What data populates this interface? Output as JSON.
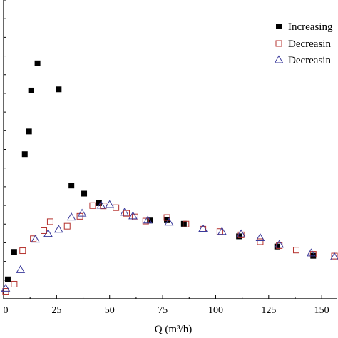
{
  "chart_data": {
    "type": "scatter",
    "title": "",
    "xlabel": "Q (m³/h)",
    "ylabel": "",
    "xlim": [
      0,
      157
    ],
    "ylim": [
      0,
      100
    ],
    "x_ticks": [
      0,
      25,
      50,
      75,
      100,
      125,
      150
    ],
    "x_tick_labels": [
      "0",
      "25",
      "50",
      "75",
      "100",
      "125",
      "150"
    ],
    "grid": false,
    "legend": {
      "placement": "top-right",
      "entries": [
        "Increasing",
        "Decreasin",
        "Decreasin"
      ]
    },
    "series": [
      {
        "name": "Increasing",
        "marker": "filled-square",
        "color": "#000000",
        "points": [
          [
            2,
            6.5
          ],
          [
            5,
            15.7
          ],
          [
            10,
            48.4
          ],
          [
            12,
            56
          ],
          [
            13,
            69.7
          ],
          [
            16,
            78.8
          ],
          [
            26,
            70.1
          ],
          [
            32,
            37.9
          ],
          [
            38,
            35.2
          ],
          [
            45,
            32
          ],
          [
            69,
            26.2
          ],
          [
            77,
            26.3
          ],
          [
            85,
            25.1
          ],
          [
            111,
            20.9
          ],
          [
            129,
            17.5
          ],
          [
            146,
            14.4
          ]
        ]
      },
      {
        "name": "Decreasin",
        "marker": "open-square",
        "color": "#b5322e",
        "points": [
          [
            1,
            2.5
          ],
          [
            5,
            4.9
          ],
          [
            9,
            16.1
          ],
          [
            14,
            20.1
          ],
          [
            19,
            22.8
          ],
          [
            22,
            25.8
          ],
          [
            30,
            24.3
          ],
          [
            36,
            27.6
          ],
          [
            42,
            31.2
          ],
          [
            47,
            31.1
          ],
          [
            53,
            30.5
          ],
          [
            58,
            28.6
          ],
          [
            62,
            27.4
          ],
          [
            67,
            26
          ],
          [
            77,
            27.2
          ],
          [
            86,
            25
          ],
          [
            94,
            23.3
          ],
          [
            102,
            22.5
          ],
          [
            112,
            21.4
          ],
          [
            121,
            19.1
          ],
          [
            130,
            17.8
          ],
          [
            138,
            16.3
          ],
          [
            146,
            14.9
          ],
          [
            156,
            14.3
          ]
        ]
      },
      {
        "name": "Decreasin",
        "marker": "open-triangle",
        "color": "#3a3a9b",
        "points": [
          [
            1,
            3.5
          ],
          [
            8,
            9.7
          ],
          [
            15,
            19.9
          ],
          [
            21,
            21.8
          ],
          [
            26,
            23.2
          ],
          [
            32,
            27.3
          ],
          [
            37,
            28.6
          ],
          [
            46,
            31.3
          ],
          [
            50,
            31.5
          ],
          [
            57,
            28.9
          ],
          [
            61,
            27.7
          ],
          [
            68,
            26.3
          ],
          [
            78,
            25.6
          ],
          [
            94,
            23.5
          ],
          [
            103,
            22.5
          ],
          [
            112,
            21.7
          ],
          [
            121,
            20.4
          ],
          [
            130,
            18.2
          ],
          [
            145,
            15.3
          ],
          [
            156,
            14
          ]
        ]
      }
    ]
  }
}
